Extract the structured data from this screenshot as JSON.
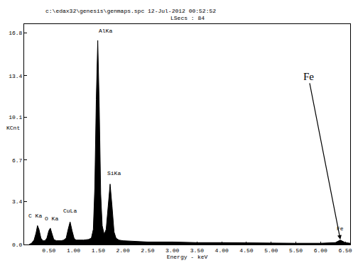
{
  "chart_data": {
    "type": "area",
    "title": "c:\\edax32\\genesis\\genmaps.spc 12-Jul-2012 00:52:52",
    "subtitle": "LSecs : 84",
    "xlabel": "Energy - keV",
    "ylabel": "KCnt",
    "color": "#000000",
    "x": [
      0.1,
      0.15,
      0.2,
      0.24,
      0.27,
      0.3,
      0.34,
      0.38,
      0.42,
      0.46,
      0.5,
      0.53,
      0.56,
      0.6,
      0.65,
      0.7,
      0.75,
      0.8,
      0.85,
      0.89,
      0.93,
      0.97,
      1.01,
      1.05,
      1.1,
      1.2,
      1.3,
      1.36,
      1.4,
      1.43,
      1.46,
      1.49,
      1.52,
      1.55,
      1.58,
      1.62,
      1.66,
      1.7,
      1.74,
      1.78,
      1.82,
      1.86,
      1.92,
      2.0,
      2.2,
      2.5,
      3.0,
      3.5,
      4.0,
      4.5,
      5.0,
      5.5,
      6.0,
      6.3,
      6.4,
      6.5,
      6.6
    ],
    "values": [
      0.0,
      0.1,
      0.35,
      0.9,
      1.5,
      1.2,
      0.5,
      0.3,
      0.3,
      0.5,
      1.1,
      1.3,
      0.9,
      0.4,
      0.3,
      0.3,
      0.3,
      0.35,
      0.5,
      1.2,
      1.8,
      1.1,
      0.5,
      0.35,
      0.35,
      0.35,
      0.4,
      0.5,
      1.2,
      4.5,
      11.5,
      16.2,
      11.0,
      4.0,
      1.5,
      0.8,
      1.2,
      3.2,
      4.8,
      3.0,
      1.0,
      0.5,
      0.35,
      0.3,
      0.25,
      0.2,
      0.2,
      0.15,
      0.15,
      0.12,
      0.1,
      0.1,
      0.1,
      0.15,
      0.35,
      0.15,
      0.1
    ],
    "xlim": [
      0,
      6.6
    ],
    "xticks": [
      {
        "value": 0.5,
        "label": "0.50"
      },
      {
        "value": 1.0,
        "label": "1.00"
      },
      {
        "value": 1.5,
        "label": "1.50"
      },
      {
        "value": 2.0,
        "label": "2.00"
      },
      {
        "value": 2.5,
        "label": "2.50"
      },
      {
        "value": 3.0,
        "label": "3.00"
      },
      {
        "value": 3.5,
        "label": "3.50"
      },
      {
        "value": 4.0,
        "label": "4.00"
      },
      {
        "value": 4.5,
        "label": "4.50"
      },
      {
        "value": 5.0,
        "label": "5.00"
      },
      {
        "value": 5.5,
        "label": "5.50"
      },
      {
        "value": 6.0,
        "label": "6.00"
      },
      {
        "value": 6.5,
        "label": "6.50"
      }
    ],
    "ylim": [
      0,
      17.5
    ],
    "yticks": [
      {
        "value": 0,
        "label": "0.0"
      },
      3.4,
      6.7,
      10.1,
      13.4,
      16.8
    ],
    "grid": false,
    "annotations": [
      {
        "text": "C Ka",
        "x": 0.22,
        "y": 1.9
      },
      {
        "text": "O Ka",
        "x": 0.56,
        "y": 1.7
      },
      {
        "text": "CuLa",
        "x": 0.93,
        "y": 2.3
      },
      {
        "text": "AlKa",
        "x": 1.64,
        "y": 16.6
      },
      {
        "text": "SiKa",
        "x": 1.82,
        "y": 5.3
      },
      {
        "text": "Fe",
        "x": 6.4,
        "y": 0.9
      }
    ],
    "callouts": [
      {
        "text": "Fe",
        "x": 6.4,
        "y": 0.4
      }
    ]
  }
}
